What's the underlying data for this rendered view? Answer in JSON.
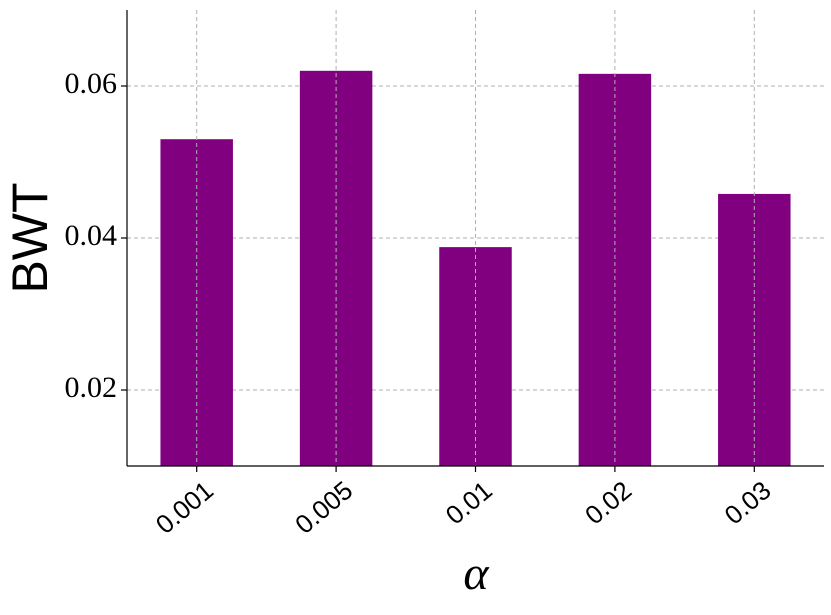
{
  "chart_data": {
    "type": "bar",
    "x_label": "α",
    "y_label": "BWT",
    "categories": [
      "0.001",
      "0.005",
      "0.01",
      "0.02",
      "0.03"
    ],
    "values": [
      0.053,
      0.062,
      0.0388,
      0.0616,
      0.0458
    ],
    "color": "#800080",
    "ylim": [
      0.01,
      0.07
    ],
    "yticks": [
      0.02,
      0.04,
      0.06
    ],
    "grid": true
  }
}
